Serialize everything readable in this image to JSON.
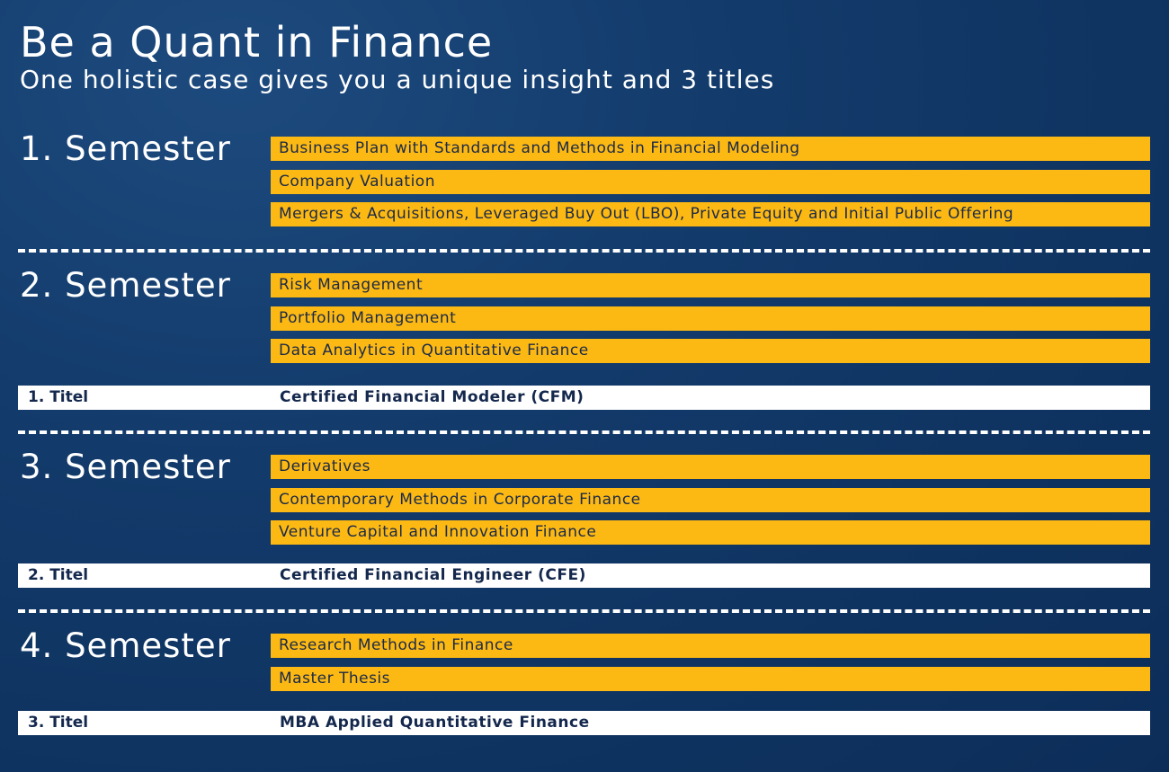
{
  "header": {
    "title": "Be a Quant in Finance",
    "subtitle": "One holistic case gives you a unique insight and 3 titles"
  },
  "semesters": [
    {
      "label": "1. Semester",
      "courses": [
        "Business Plan with Standards and Methods in Financial Modeling",
        "Company Valuation",
        "Mergers & Acquisitions, Leveraged Buy Out (LBO), Private Equity and Initial Public Offering"
      ]
    },
    {
      "label": "2. Semester",
      "courses": [
        "Risk Management",
        "Portfolio Management",
        "Data Analytics in Quantitative Finance"
      ],
      "award": {
        "label": "1. Titel",
        "name": "Certified Financial Modeler (CFM)"
      }
    },
    {
      "label": "3. Semester",
      "courses": [
        "Derivatives",
        "Contemporary Methods in Corporate Finance",
        "Venture Capital and Innovation Finance"
      ],
      "award": {
        "label": "2. Titel",
        "name": "Certified Financial Engineer (CFE)"
      }
    },
    {
      "label": "4. Semester",
      "courses": [
        "Research Methods in Finance",
        "Master Thesis"
      ],
      "award": {
        "label": "3. Titel",
        "name": "MBA Applied Quantitative Finance"
      }
    }
  ]
}
